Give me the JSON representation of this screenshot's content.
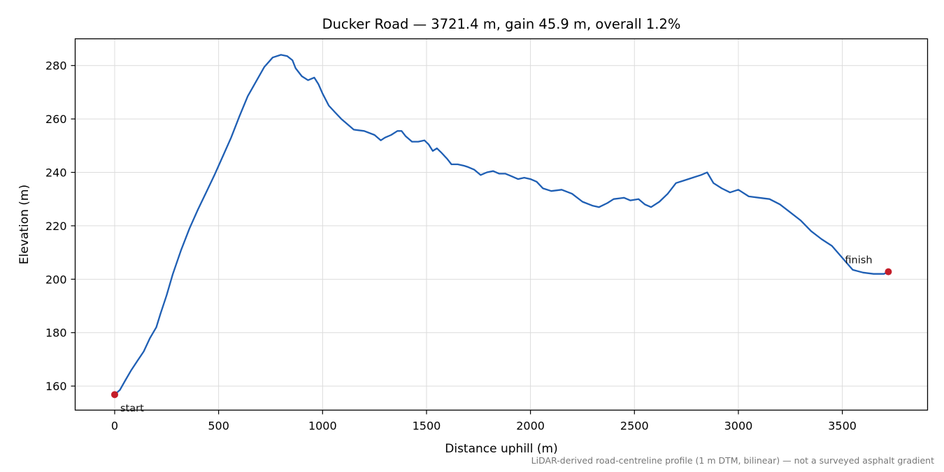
{
  "chart_data": {
    "type": "line",
    "title": "Ducker Road — 3721.4 m, gain 45.9 m, overall 1.2%",
    "xlabel": "Distance uphill (m)",
    "ylabel": "Elevation (m)",
    "xlim": [
      -190,
      3910
    ],
    "ylim": [
      151,
      290
    ],
    "xticks": [
      0,
      500,
      1000,
      1500,
      2000,
      2500,
      3000,
      3500
    ],
    "yticks": [
      160,
      180,
      200,
      220,
      240,
      260,
      280
    ],
    "grid": true,
    "line_color": "#1f5fb4",
    "marker_color": "#c41e2a",
    "series": [
      {
        "x": [
          0,
          25,
          50,
          80,
          110,
          140,
          170,
          200,
          220,
          250,
          280,
          320,
          360,
          400,
          440,
          480,
          520,
          560,
          600,
          640,
          680,
          720,
          760,
          800,
          830,
          855,
          870,
          900,
          930,
          960,
          980,
          1000,
          1030,
          1060,
          1090,
          1120,
          1150,
          1200,
          1250,
          1280,
          1300,
          1330,
          1360,
          1380,
          1400,
          1430,
          1460,
          1490,
          1510,
          1530,
          1550,
          1570,
          1600,
          1620,
          1650,
          1680,
          1700,
          1730,
          1760,
          1790,
          1820,
          1850,
          1880,
          1910,
          1940,
          1970,
          2000,
          2030,
          2060,
          2100,
          2150,
          2200,
          2250,
          2300,
          2330,
          2370,
          2400,
          2450,
          2480,
          2520,
          2550,
          2580,
          2620,
          2660,
          2700,
          2740,
          2780,
          2820,
          2850,
          2880,
          2920,
          2960,
          3000,
          3050,
          3100,
          3150,
          3200,
          3250,
          3300,
          3350,
          3400,
          3450,
          3500,
          3550,
          3600,
          3650,
          3700,
          3721.4
        ],
        "y": [
          156.8,
          158.5,
          162,
          166,
          169.5,
          173,
          178,
          182,
          187,
          194,
          202,
          211,
          219,
          226,
          232.5,
          239,
          246,
          253,
          261,
          268.5,
          274,
          279.5,
          283,
          284,
          283.5,
          282,
          279,
          276,
          274.5,
          275.5,
          273,
          269.5,
          265,
          262.5,
          260,
          258,
          256,
          255.5,
          254,
          252,
          253,
          254,
          255.5,
          255.5,
          253.5,
          251.5,
          251.5,
          252,
          250.5,
          248,
          249,
          247.5,
          245,
          243,
          243,
          242.5,
          242,
          241,
          239,
          240,
          240.5,
          239.5,
          239.5,
          238.5,
          237.5,
          238,
          237.5,
          236.5,
          234,
          233,
          233.5,
          232,
          229,
          227.5,
          227,
          228.5,
          230,
          230.5,
          229.5,
          230,
          228,
          227,
          229,
          232,
          236,
          237,
          238,
          239,
          240,
          236,
          234,
          232.5,
          233.5,
          231,
          230.5,
          230,
          228,
          225,
          222,
          218,
          215,
          212.5,
          208,
          203.5,
          202.5,
          202,
          202,
          202.8
        ]
      }
    ],
    "points": [
      {
        "label": "start",
        "x": 0,
        "y": 156.8
      },
      {
        "label": "finish",
        "x": 3721.4,
        "y": 202.8
      }
    ],
    "footnote": "LiDAR-derived road-centreline profile (1 m DTM, bilinear) — not a surveyed asphalt gradient"
  }
}
